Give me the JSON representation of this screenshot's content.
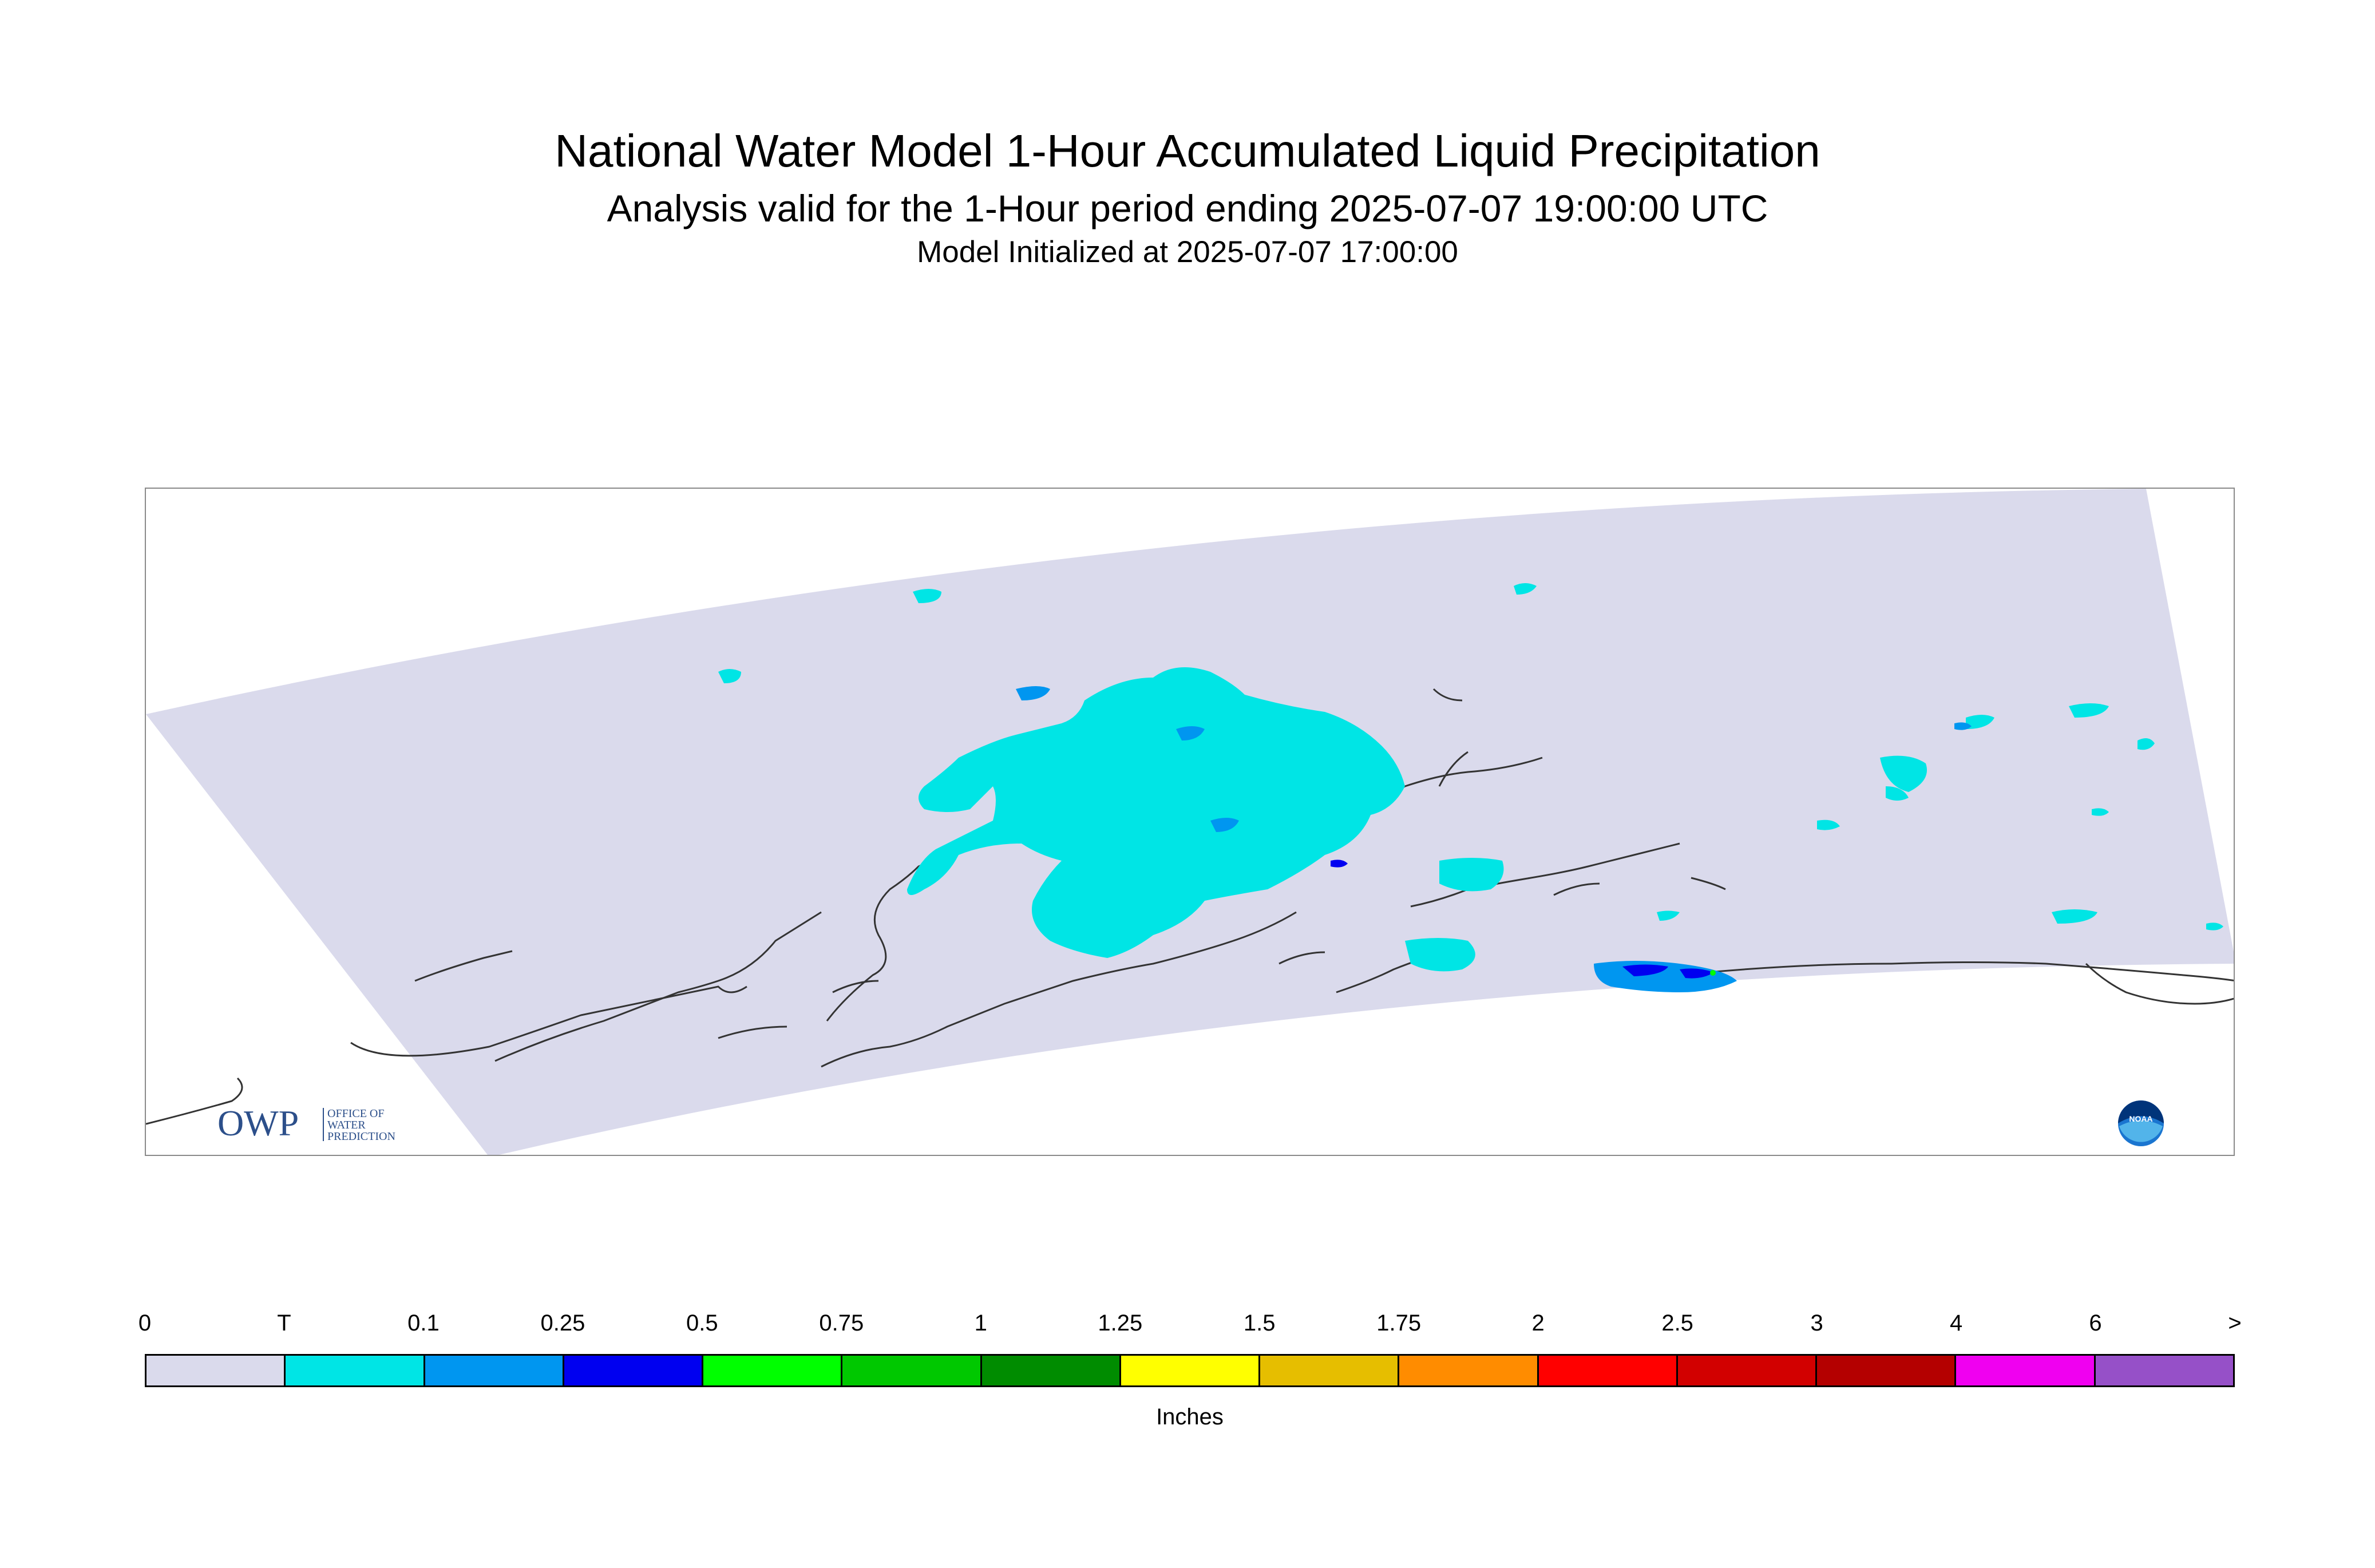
{
  "header": {
    "title": "National Water Model 1-Hour Accumulated Liquid Precipitation",
    "subtitle": "Analysis valid for the 1-Hour period ending 2025-07-07 19:00:00 UTC",
    "init_line": "Model Initialized at 2025-07-07 17:00:00"
  },
  "map": {
    "domain_fill_color": "#dadaec",
    "coastline_color": "#333333",
    "precip_colors": {
      "trace": "#00e5e5",
      "p0_1": "#0096f0",
      "p0_25": "#0000f0",
      "p0_5": "#00ff00"
    }
  },
  "logos": {
    "owp_mark": "OWP",
    "owp_text": [
      "OFFICE OF",
      "WATER",
      "PREDICTION"
    ],
    "noaa_text": "NOAA"
  },
  "legend": {
    "tick_labels": [
      "0",
      "T",
      "0.1",
      "0.25",
      "0.5",
      "0.75",
      "1",
      "1.25",
      "1.5",
      "1.75",
      "2",
      "2.5",
      "3",
      "4",
      "6",
      ">"
    ],
    "colors": [
      "#dadaec",
      "#00e5e5",
      "#0096f0",
      "#0000f0",
      "#00ff00",
      "#00c800",
      "#008c00",
      "#ffff00",
      "#e6be00",
      "#ff8c00",
      "#ff0000",
      "#d20000",
      "#b40000",
      "#f000f0",
      "#9650c8"
    ],
    "units": "Inches"
  }
}
